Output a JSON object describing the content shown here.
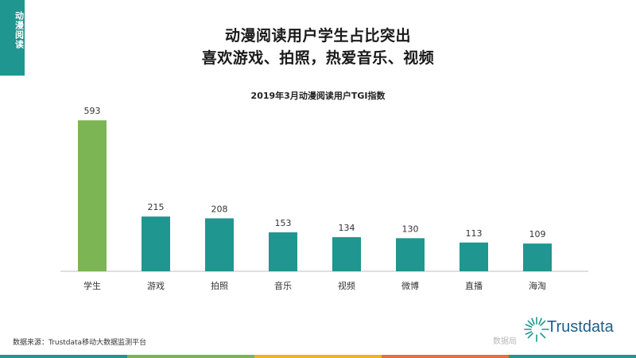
{
  "side_tab": {
    "label": "动漫阅读"
  },
  "headline": {
    "line1": "动漫阅读用户学生占比突出",
    "line2": "喜欢游戏、拍照，热爱音乐、视频"
  },
  "chart_data": {
    "type": "bar",
    "title": "2019年3月动漫阅读用户TGI指数",
    "categories": [
      "学生",
      "游戏",
      "拍照",
      "音乐",
      "视频",
      "微博",
      "直播",
      "海淘"
    ],
    "values": [
      593,
      215,
      208,
      153,
      134,
      130,
      113,
      109
    ],
    "ylim": [
      0,
      600
    ],
    "grid": false,
    "colors": {
      "highlight": "#7cb554",
      "default": "#1f9690"
    }
  },
  "footer": {
    "source": "数据来源：Trustdata移动大数据监测平台",
    "watermark": "数据局",
    "brand": "Trustdata"
  },
  "colors": {
    "accent": "#1f9690",
    "stripe": [
      "#1f9690",
      "#7cb554",
      "#f2b21b",
      "#e5703a",
      "#1f9690"
    ]
  }
}
